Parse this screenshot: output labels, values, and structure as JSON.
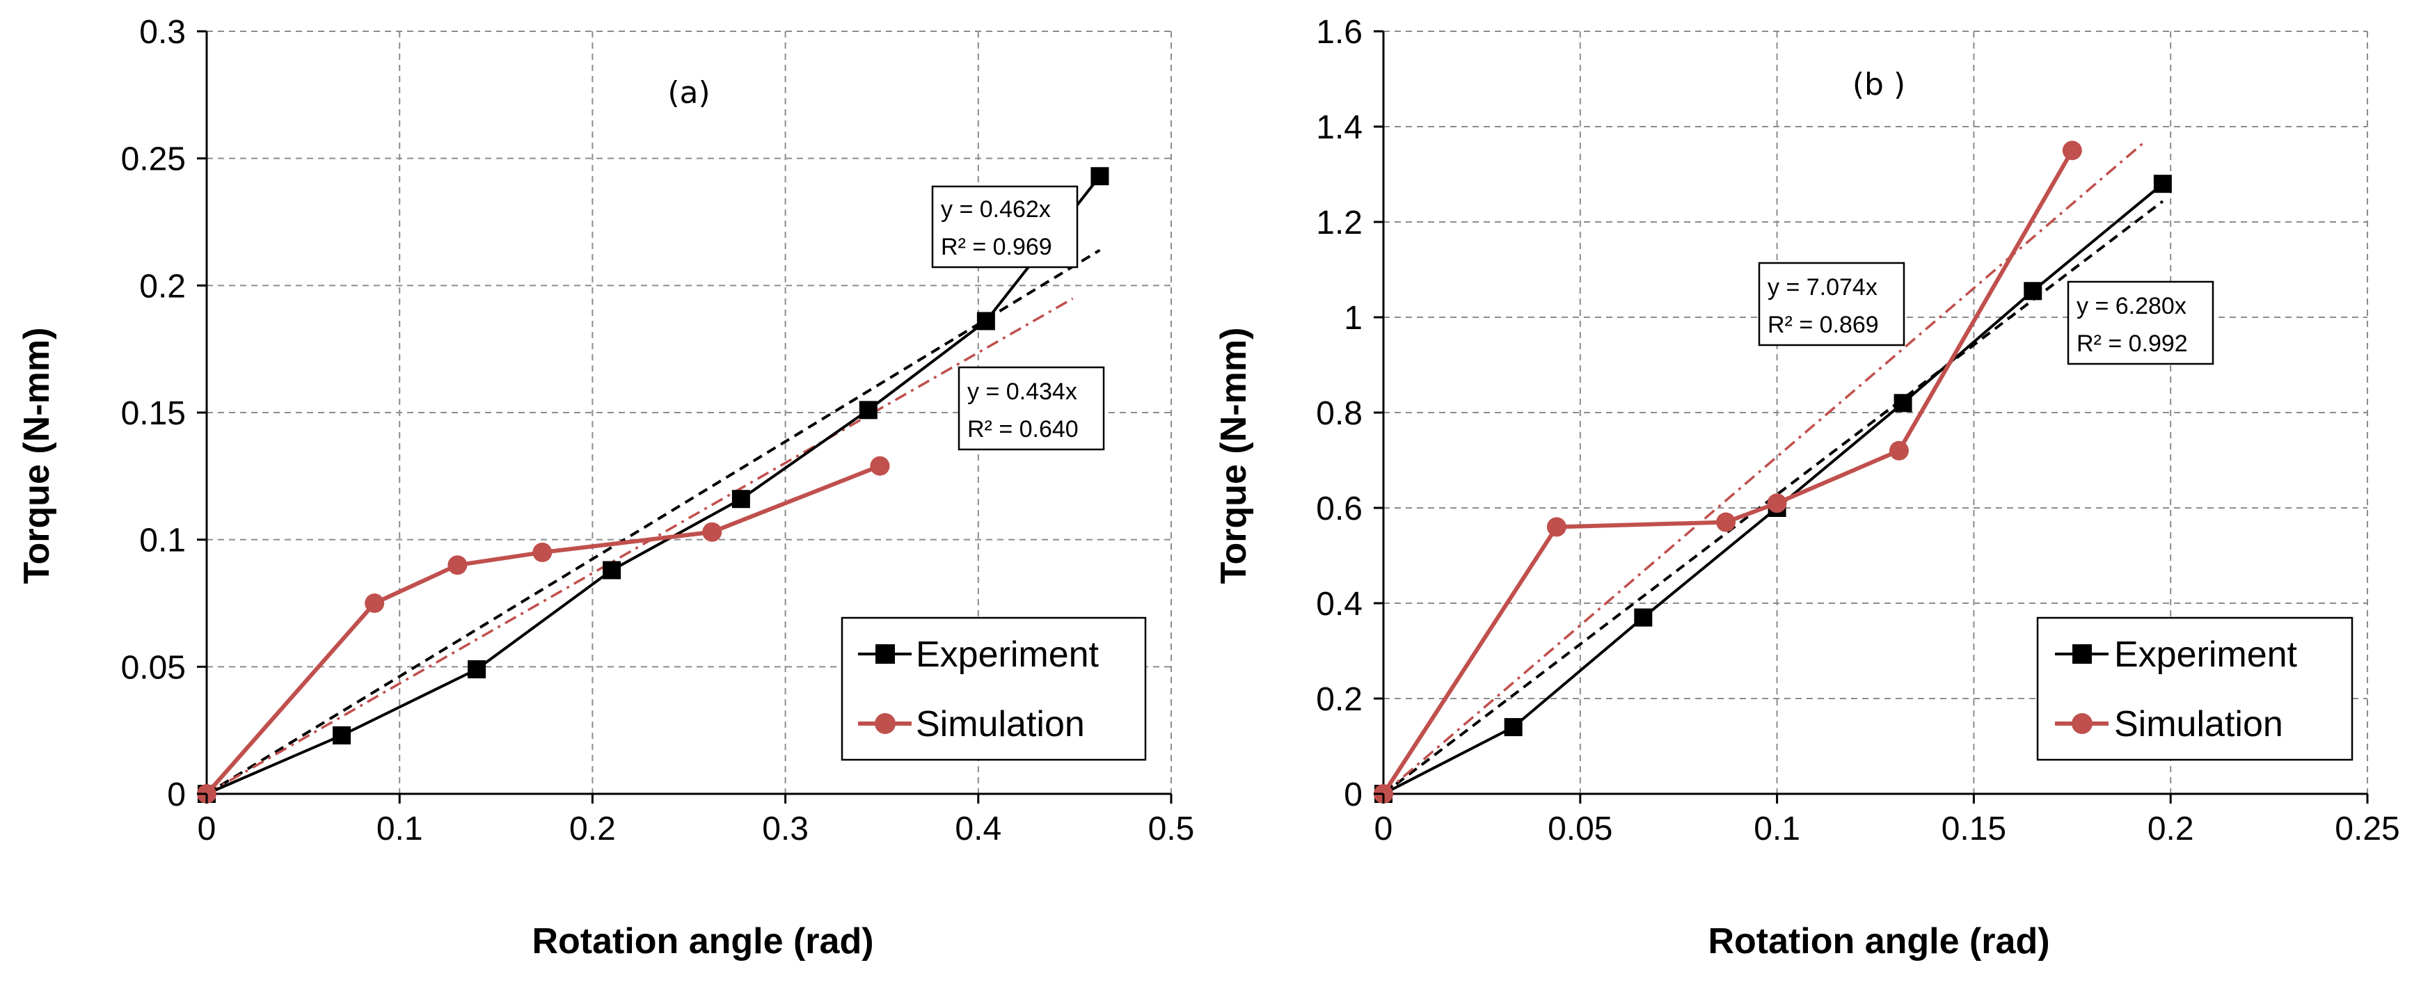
{
  "colors": {
    "experiment": "#000000",
    "simulation": "#C0504D",
    "grid": "#8C8C8C"
  },
  "chart_data": [
    {
      "type": "line",
      "panel_label": "(a)",
      "xlabel": "Rotation angle (rad)",
      "ylabel": "Torque (N-mm)",
      "xlim": [
        0,
        0.5
      ],
      "ylim": [
        0,
        0.3
      ],
      "xticks": [
        0,
        0.1,
        0.2,
        0.3,
        0.4,
        0.5
      ],
      "xtick_labels": [
        "0",
        "0.1",
        "0.2",
        "0.3",
        "0.4",
        "0.5"
      ],
      "yticks": [
        0,
        0.05,
        0.1,
        0.15,
        0.2,
        0.25,
        0.3
      ],
      "ytick_labels": [
        "0",
        "0.05",
        "0.1",
        "0.15",
        "0.2",
        "0.25",
        "0.3"
      ],
      "grid": true,
      "legend_position": "bottom-right",
      "series": [
        {
          "name": "Experiment",
          "marker": "square",
          "x": [
            0,
            0.07,
            0.14,
            0.21,
            0.277,
            0.343,
            0.404,
            0.463
          ],
          "y": [
            0,
            0.023,
            0.049,
            0.088,
            0.116,
            0.151,
            0.186,
            0.243
          ]
        },
        {
          "name": "Simulation",
          "marker": "circle",
          "x": [
            0,
            0.087,
            0.13,
            0.174,
            0.262,
            0.349
          ],
          "y": [
            0,
            0.075,
            0.09,
            0.095,
            0.103,
            0.129
          ]
        }
      ],
      "trendlines": [
        {
          "series": "Experiment",
          "slope": 0.462,
          "x_end": 0.463,
          "equation": "y = 0.462x",
          "r2": "R² = 0.969"
        },
        {
          "series": "Simulation",
          "slope": 0.434,
          "x_end": 0.449,
          "equation": "y = 0.434x",
          "r2": "R² = 0.640"
        }
      ]
    },
    {
      "type": "line",
      "panel_label": "(b )",
      "xlabel": "Rotation angle (rad)",
      "ylabel": "Torque (N-mm)",
      "xlim": [
        0,
        0.25
      ],
      "ylim": [
        0,
        1.6
      ],
      "xticks": [
        0,
        0.05,
        0.1,
        0.15,
        0.2,
        0.25
      ],
      "xtick_labels": [
        "0",
        "0.05",
        "0.1",
        "0.15",
        "0.2",
        "0.25"
      ],
      "yticks": [
        0,
        0.2,
        0.4,
        0.6,
        0.8,
        1.0,
        1.2,
        1.4,
        1.6
      ],
      "ytick_labels": [
        "0",
        "0.2",
        "0.4",
        "0.6",
        "0.8",
        "1",
        "1.2",
        "1.4",
        "1.6"
      ],
      "grid": true,
      "legend_position": "bottom-right",
      "series": [
        {
          "name": "Experiment",
          "marker": "square",
          "x": [
            0,
            0.033,
            0.066,
            0.1,
            0.132,
            0.165,
            0.198
          ],
          "y": [
            0,
            0.14,
            0.37,
            0.6,
            0.82,
            1.055,
            1.28
          ]
        },
        {
          "name": "Simulation",
          "marker": "circle",
          "x": [
            0,
            0.044,
            0.087,
            0.1,
            0.131,
            0.175
          ],
          "y": [
            0,
            0.56,
            0.57,
            0.61,
            0.72,
            1.35
          ]
        }
      ],
      "trendlines": [
        {
          "series": "Experiment",
          "slope": 6.28,
          "x_end": 0.198,
          "equation": "y = 6.280x",
          "r2": "R² = 0.992"
        },
        {
          "series": "Simulation",
          "slope": 7.074,
          "x_end": 0.193,
          "equation": "y = 7.074x",
          "r2": "R² = 0.869"
        }
      ]
    }
  ]
}
